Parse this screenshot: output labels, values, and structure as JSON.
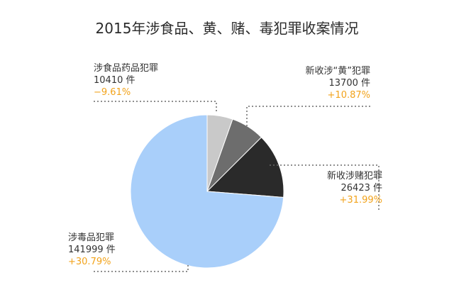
{
  "chart_data": {
    "type": "pie",
    "title": "2015年涉食品、黄、赌、毒犯罪收案情况",
    "slices": [
      {
        "name": "涉食品药品犯罪",
        "value": 10410,
        "count_text": "10410 件",
        "change_text": "−9.61%",
        "color": "#c9c9c9"
      },
      {
        "name": "新收涉“黄”犯罪",
        "value": 13700,
        "count_text": "13700 件",
        "change_text": "+10.87%",
        "color": "#6d6d6d"
      },
      {
        "name": "新收涉赌犯罪",
        "value": 26423,
        "count_text": "26423 件",
        "change_text": "+31.99%",
        "color": "#2a2a2a"
      },
      {
        "name": "涉毒品犯罪",
        "value": 141999,
        "count_text": "141999 件",
        "change_text": "+30.79%",
        "color": "#a9cffa"
      }
    ]
  }
}
